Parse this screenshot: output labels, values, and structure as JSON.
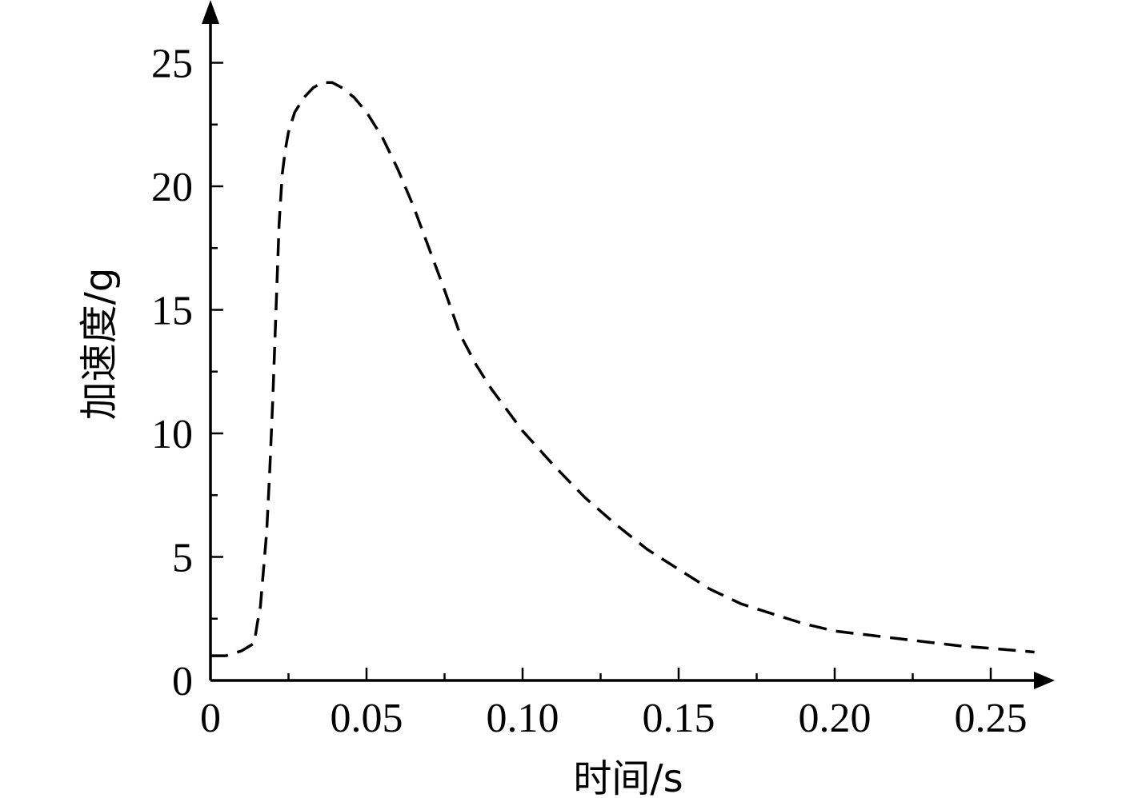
{
  "chart_data": {
    "type": "line",
    "title": "",
    "xlabel": "时间/s",
    "ylabel": "加速度/g",
    "xlim": [
      0,
      0.265
    ],
    "ylim": [
      0,
      27.5
    ],
    "x_ticks": [
      0,
      0.05,
      0.1,
      0.15,
      0.2,
      0.25
    ],
    "x_tick_labels": [
      "0",
      "0.05",
      "0.10",
      "0.15",
      "0.20",
      "0.25"
    ],
    "x_minor_ticks": [
      0.025,
      0.075,
      0.125,
      0.175,
      0.225
    ],
    "y_ticks": [
      0,
      5,
      10,
      15,
      20,
      25
    ],
    "y_tick_labels": [
      "0",
      "5",
      "10",
      "15",
      "20",
      "25"
    ],
    "y_minor_ticks": [
      2.5,
      7.5,
      12.5,
      17.5,
      22.5
    ],
    "grid": false,
    "legend": "none",
    "colors": {
      "line": "#000000",
      "axes": "#000000",
      "background": "#ffffff"
    },
    "series": [
      {
        "style": "dashed",
        "x": [
          0,
          0.005,
          0.01,
          0.014,
          0.015,
          0.016,
          0.017,
          0.018,
          0.019,
          0.02,
          0.021,
          0.022,
          0.023,
          0.024,
          0.025,
          0.027,
          0.03,
          0.033,
          0.036,
          0.039,
          0.042,
          0.046,
          0.05,
          0.055,
          0.06,
          0.065,
          0.07,
          0.075,
          0.08,
          0.085,
          0.09,
          0.1,
          0.11,
          0.12,
          0.13,
          0.14,
          0.15,
          0.16,
          0.17,
          0.18,
          0.19,
          0.2,
          0.21,
          0.22,
          0.23,
          0.24,
          0.25,
          0.264
        ],
        "y": [
          1.0,
          1.0,
          1.2,
          1.5,
          2.3,
          3.0,
          4.5,
          6.0,
          8.5,
          11.5,
          15.0,
          18.5,
          20.5,
          21.5,
          22.2,
          23.0,
          23.6,
          24.0,
          24.2,
          24.2,
          24.0,
          23.6,
          23.0,
          22.0,
          20.7,
          19.2,
          17.5,
          15.8,
          14.0,
          12.8,
          11.8,
          10.1,
          8.7,
          7.4,
          6.3,
          5.3,
          4.5,
          3.7,
          3.1,
          2.7,
          2.3,
          2.0,
          1.85,
          1.7,
          1.55,
          1.4,
          1.3,
          1.15
        ]
      }
    ]
  }
}
